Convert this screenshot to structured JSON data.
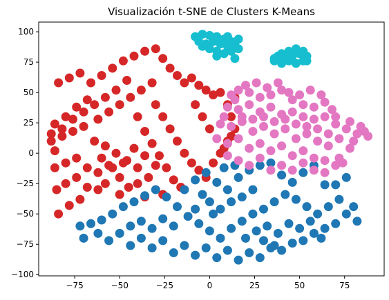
{
  "chart_data": {
    "type": "scatter",
    "title": "Visualización t-SNE de Clusters K-Means",
    "xlabel": "",
    "ylabel": "",
    "xlim": [
      -95,
      97
    ],
    "ylim": [
      -101,
      108
    ],
    "grid": false,
    "legend": "none",
    "xticks": [
      -75,
      -50,
      -25,
      0,
      25,
      50,
      75
    ],
    "xtick_labels": [
      "−75",
      "−50",
      "−25",
      "0",
      "25",
      "50",
      "75"
    ],
    "yticks": [
      -100,
      -75,
      -50,
      -25,
      0,
      25,
      50,
      75,
      100
    ],
    "ytick_labels": [
      "−100",
      "−75",
      "−50",
      "−25",
      "0",
      "25",
      "50",
      "75",
      "100"
    ],
    "series": [
      {
        "color": "#d62728",
        "points": [
          [
            -84,
            -50
          ],
          [
            -78,
            -43
          ],
          [
            -72,
            -38
          ],
          [
            -85,
            -30
          ],
          [
            -80,
            -25
          ],
          [
            -74,
            -20
          ],
          [
            -68,
            -28
          ],
          [
            -62,
            -30
          ],
          [
            -58,
            -25
          ],
          [
            -86,
            -12
          ],
          [
            -80,
            -8
          ],
          [
            -74,
            -4
          ],
          [
            -68,
            -12
          ],
          [
            -62,
            -16
          ],
          [
            -56,
            -10
          ],
          [
            -50,
            -20
          ],
          [
            -45,
            -28
          ],
          [
            -40,
            -25
          ],
          [
            -88,
            10
          ],
          [
            -82,
            14
          ],
          [
            -76,
            18
          ],
          [
            -70,
            22
          ],
          [
            -64,
            10
          ],
          [
            -58,
            6
          ],
          [
            -52,
            0
          ],
          [
            -46,
            -6
          ],
          [
            -40,
            -12
          ],
          [
            -34,
            -20
          ],
          [
            -86,
            24
          ],
          [
            -80,
            30
          ],
          [
            -74,
            38
          ],
          [
            -68,
            44
          ],
          [
            -62,
            28
          ],
          [
            -56,
            34
          ],
          [
            -50,
            40
          ],
          [
            -44,
            46
          ],
          [
            -38,
            52
          ],
          [
            -32,
            58
          ],
          [
            -84,
            58
          ],
          [
            -78,
            62
          ],
          [
            -72,
            66
          ],
          [
            -66,
            58
          ],
          [
            -60,
            64
          ],
          [
            -54,
            70
          ],
          [
            -48,
            76
          ],
          [
            -42,
            80
          ],
          [
            -36,
            84
          ],
          [
            -30,
            86
          ],
          [
            -26,
            78
          ],
          [
            -22,
            70
          ],
          [
            -18,
            64
          ],
          [
            -14,
            58
          ],
          [
            -10,
            62
          ],
          [
            -6,
            56
          ],
          [
            -2,
            52
          ],
          [
            2,
            48
          ],
          [
            6,
            50
          ],
          [
            -30,
            40
          ],
          [
            -26,
            30
          ],
          [
            -22,
            20
          ],
          [
            -18,
            10
          ],
          [
            -14,
            0
          ],
          [
            -10,
            -8
          ],
          [
            -6,
            -14
          ],
          [
            -2,
            -20
          ],
          [
            2,
            -8
          ],
          [
            6,
            0
          ],
          [
            -40,
            30
          ],
          [
            -36,
            18
          ],
          [
            -32,
            8
          ],
          [
            -28,
            -2
          ],
          [
            -24,
            -12
          ],
          [
            -20,
            -22
          ],
          [
            -16,
            -28
          ],
          [
            10,
            40
          ],
          [
            12,
            30
          ],
          [
            14,
            20
          ],
          [
            10,
            10
          ],
          [
            8,
            4
          ],
          [
            12,
            14
          ],
          [
            14,
            46
          ],
          [
            -4,
            30
          ],
          [
            0,
            20
          ],
          [
            -8,
            40
          ],
          [
            -46,
            60
          ],
          [
            -52,
            52
          ],
          [
            -58,
            46
          ],
          [
            -64,
            40
          ],
          [
            -70,
            34
          ],
          [
            -76,
            28
          ],
          [
            -82,
            20
          ],
          [
            -88,
            16
          ],
          [
            -86,
            2
          ],
          [
            -60,
            -4
          ],
          [
            -54,
            -12
          ],
          [
            -48,
            -8
          ],
          [
            -42,
            4
          ],
          [
            -36,
            -2
          ],
          [
            -30,
            -10
          ],
          [
            -26,
            -34
          ],
          [
            -36,
            -36
          ],
          [
            -50,
            -34
          ]
        ]
      },
      {
        "color": "#1f77b4",
        "points": [
          [
            -72,
            -60
          ],
          [
            -66,
            -58
          ],
          [
            -60,
            -55
          ],
          [
            -54,
            -50
          ],
          [
            -48,
            -44
          ],
          [
            -42,
            -40
          ],
          [
            -36,
            -35
          ],
          [
            -70,
            -70
          ],
          [
            -62,
            -66
          ],
          [
            -56,
            -72
          ],
          [
            -50,
            -66
          ],
          [
            -44,
            -76
          ],
          [
            -38,
            -70
          ],
          [
            -32,
            -78
          ],
          [
            -26,
            -72
          ],
          [
            -20,
            -82
          ],
          [
            -14,
            -76
          ],
          [
            -8,
            -84
          ],
          [
            -2,
            -78
          ],
          [
            4,
            -86
          ],
          [
            10,
            -80
          ],
          [
            16,
            -88
          ],
          [
            22,
            -82
          ],
          [
            28,
            -86
          ],
          [
            34,
            -78
          ],
          [
            40,
            -80
          ],
          [
            46,
            -74
          ],
          [
            52,
            -72
          ],
          [
            58,
            -66
          ],
          [
            64,
            -62
          ],
          [
            70,
            -58
          ],
          [
            76,
            -50
          ],
          [
            80,
            -44
          ],
          [
            82,
            -56
          ],
          [
            -30,
            -30
          ],
          [
            -24,
            -36
          ],
          [
            -18,
            -44
          ],
          [
            -12,
            -52
          ],
          [
            -6,
            -58
          ],
          [
            0,
            -64
          ],
          [
            6,
            -70
          ],
          [
            12,
            -62
          ],
          [
            18,
            -56
          ],
          [
            24,
            -50
          ],
          [
            30,
            -46
          ],
          [
            36,
            -40
          ],
          [
            42,
            -34
          ],
          [
            48,
            -38
          ],
          [
            54,
            -44
          ],
          [
            60,
            -50
          ],
          [
            66,
            -44
          ],
          [
            72,
            -38
          ],
          [
            76,
            -20
          ],
          [
            70,
            -26
          ],
          [
            -14,
            -30
          ],
          [
            -8,
            -22
          ],
          [
            -2,
            -16
          ],
          [
            4,
            -24
          ],
          [
            10,
            -30
          ],
          [
            16,
            -20
          ],
          [
            22,
            -14
          ],
          [
            28,
            -10
          ],
          [
            34,
            -8
          ],
          [
            40,
            -18
          ],
          [
            46,
            -24
          ],
          [
            52,
            -16
          ],
          [
            58,
            -10
          ],
          [
            64,
            -26
          ],
          [
            -20,
            -60
          ],
          [
            -26,
            -54
          ],
          [
            -32,
            -62
          ],
          [
            -38,
            -56
          ],
          [
            -44,
            -60
          ],
          [
            20,
            -70
          ],
          [
            26,
            -64
          ],
          [
            32,
            -60
          ],
          [
            38,
            -66
          ],
          [
            44,
            -58
          ],
          [
            50,
            -62
          ],
          [
            56,
            -56
          ],
          [
            62,
            -70
          ],
          [
            30,
            -72
          ],
          [
            36,
            -76
          ],
          [
            0,
            -40
          ],
          [
            6,
            -46
          ],
          [
            12,
            -40
          ],
          [
            18,
            -36
          ],
          [
            24,
            -30
          ],
          [
            -8,
            -46
          ],
          [
            -4,
            -34
          ],
          [
            14,
            -10
          ],
          [
            8,
            -12
          ],
          [
            2,
            -50
          ]
        ]
      },
      {
        "color": "#e377c2",
        "points": [
          [
            12,
            48
          ],
          [
            16,
            52
          ],
          [
            22,
            50
          ],
          [
            28,
            46
          ],
          [
            34,
            48
          ],
          [
            40,
            52
          ],
          [
            46,
            44
          ],
          [
            52,
            40
          ],
          [
            58,
            38
          ],
          [
            64,
            42
          ],
          [
            68,
            36
          ],
          [
            10,
            38
          ],
          [
            16,
            36
          ],
          [
            22,
            40
          ],
          [
            28,
            34
          ],
          [
            34,
            38
          ],
          [
            40,
            32
          ],
          [
            46,
            34
          ],
          [
            52,
            30
          ],
          [
            58,
            28
          ],
          [
            64,
            30
          ],
          [
            70,
            24
          ],
          [
            76,
            20
          ],
          [
            82,
            16
          ],
          [
            86,
            18
          ],
          [
            88,
            14
          ],
          [
            84,
            22
          ],
          [
            78,
            26
          ],
          [
            6,
            24
          ],
          [
            12,
            22
          ],
          [
            18,
            26
          ],
          [
            24,
            18
          ],
          [
            30,
            22
          ],
          [
            36,
            16
          ],
          [
            42,
            20
          ],
          [
            48,
            12
          ],
          [
            54,
            16
          ],
          [
            60,
            10
          ],
          [
            66,
            6
          ],
          [
            72,
            12
          ],
          [
            4,
            12
          ],
          [
            10,
            8
          ],
          [
            16,
            12
          ],
          [
            22,
            4
          ],
          [
            28,
            8
          ],
          [
            34,
            2
          ],
          [
            40,
            6
          ],
          [
            46,
            -2
          ],
          [
            52,
            2
          ],
          [
            58,
            -4
          ],
          [
            64,
            -6
          ],
          [
            70,
            -10
          ],
          [
            10,
            -2
          ],
          [
            16,
            -6
          ],
          [
            22,
            -10
          ],
          [
            28,
            -4
          ],
          [
            34,
            -14
          ],
          [
            40,
            -10
          ],
          [
            46,
            -14
          ],
          [
            52,
            -8
          ],
          [
            58,
            -14
          ],
          [
            64,
            -16
          ],
          [
            74,
            -8
          ],
          [
            8,
            30
          ],
          [
            14,
            44
          ],
          [
            20,
            56
          ],
          [
            26,
            58
          ],
          [
            32,
            54
          ],
          [
            38,
            58
          ],
          [
            44,
            50
          ],
          [
            50,
            48
          ],
          [
            56,
            52
          ],
          [
            62,
            48
          ],
          [
            70,
            30
          ],
          [
            18,
            30
          ],
          [
            24,
            28
          ],
          [
            30,
            30
          ],
          [
            36,
            26
          ],
          [
            42,
            28
          ],
          [
            48,
            24
          ],
          [
            54,
            22
          ],
          [
            60,
            20
          ],
          [
            66,
            16
          ],
          [
            72,
            -4
          ],
          [
            78,
            4
          ],
          [
            80,
            10
          ]
        ]
      },
      {
        "color": "#17becf",
        "points": [
          [
            -8,
            96
          ],
          [
            -4,
            98
          ],
          [
            0,
            97
          ],
          [
            4,
            96
          ],
          [
            8,
            94
          ],
          [
            12,
            92
          ],
          [
            14,
            90
          ],
          [
            16,
            86
          ],
          [
            12,
            84
          ],
          [
            8,
            82
          ],
          [
            4,
            84
          ],
          [
            0,
            86
          ],
          [
            -4,
            88
          ],
          [
            -6,
            92
          ],
          [
            2,
            92
          ],
          [
            6,
            90
          ],
          [
            10,
            88
          ],
          [
            -2,
            90
          ],
          [
            4,
            80
          ],
          [
            14,
            78
          ],
          [
            16,
            94
          ],
          [
            10,
            96
          ],
          [
            36,
            78
          ],
          [
            38,
            80
          ],
          [
            40,
            82
          ],
          [
            44,
            84
          ],
          [
            48,
            86
          ],
          [
            52,
            84
          ],
          [
            54,
            80
          ],
          [
            52,
            76
          ],
          [
            48,
            74
          ],
          [
            44,
            76
          ],
          [
            40,
            74
          ],
          [
            46,
            80
          ],
          [
            50,
            82
          ],
          [
            42,
            78
          ],
          [
            54,
            76
          ],
          [
            36,
            76
          ]
        ]
      }
    ]
  }
}
